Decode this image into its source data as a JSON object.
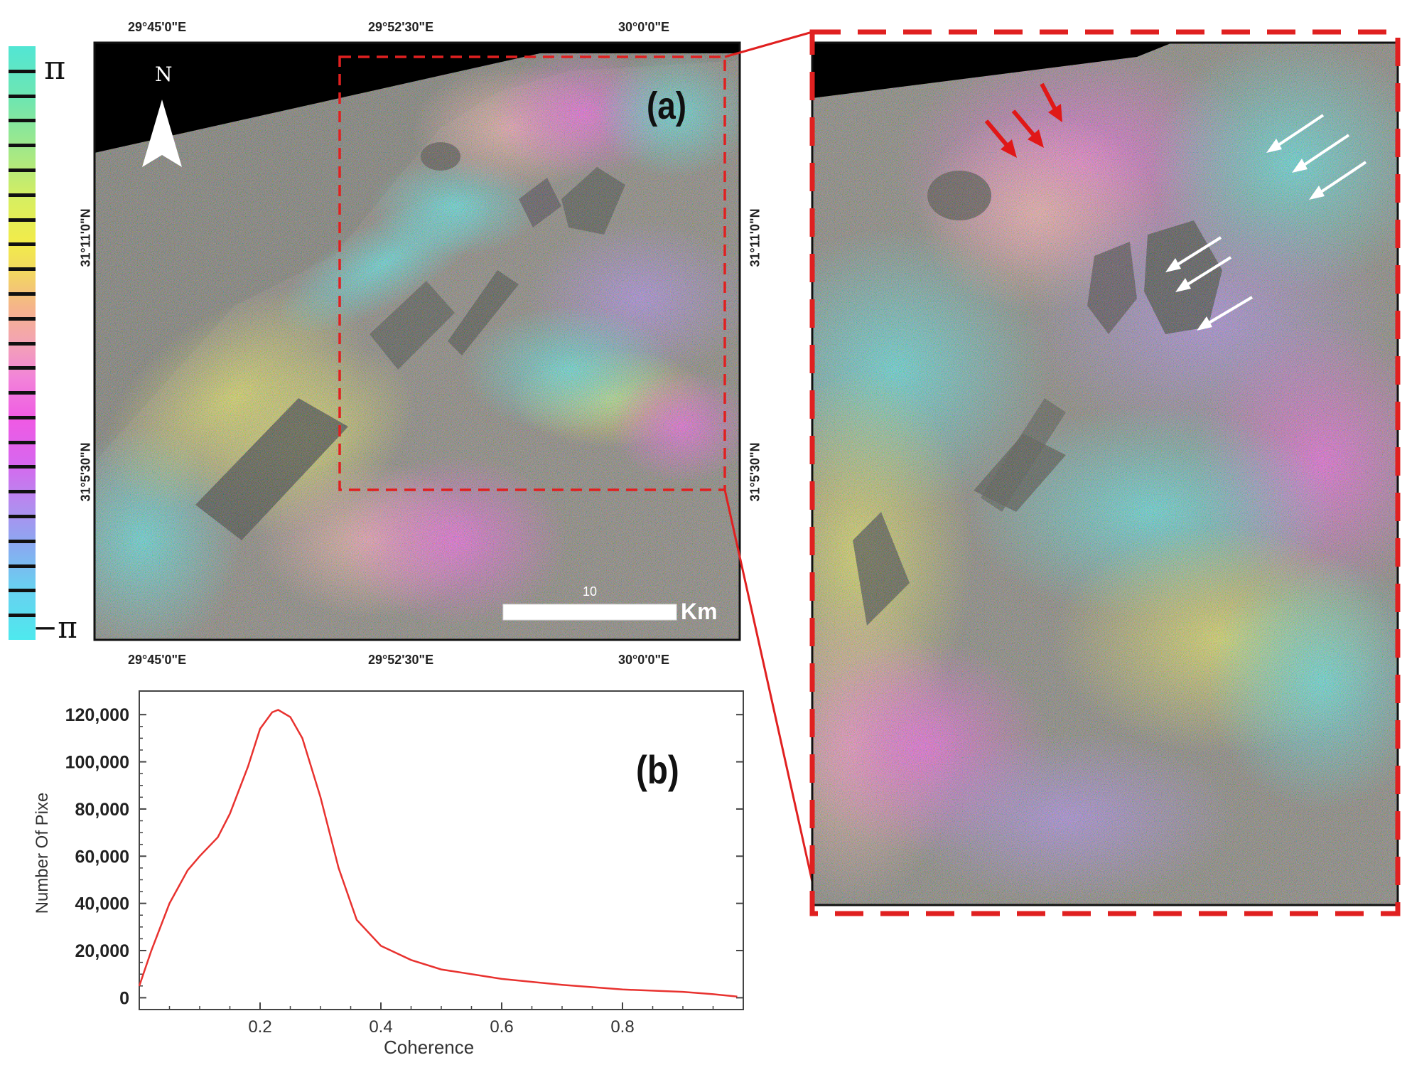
{
  "figure": {
    "colorbar": {
      "top_label": "π",
      "bottom_label": "−π"
    },
    "panel_a": {
      "label": "(a)",
      "north_label": "N",
      "lon_ticks": [
        "29°45'0\"E",
        "29°52'30\"E",
        "30°0'0\"E"
      ],
      "lat_ticks": [
        "31°11'0\"N",
        "31°5'30\"N"
      ],
      "scale_bar": {
        "value": "10",
        "unit": "Km"
      }
    },
    "panel_b": {
      "label": "(b)",
      "xlabel": "Coherence",
      "ylabel": "Number Of Pixe",
      "xtick_labels": [
        "0.2",
        "0.4",
        "0.6",
        "0.8"
      ],
      "ytick_labels": [
        "120,000",
        "100,000",
        "80,000",
        "60,000",
        "40,000",
        "20,000",
        "0"
      ],
      "line_color": "#e8322f"
    },
    "inset": {
      "frame_color": "#e02020",
      "red_arrows": 3,
      "white_arrows": 6
    }
  },
  "chart_data": {
    "type": "line",
    "title": "",
    "xlabel": "Coherence",
    "ylabel": "Number Of Pixe",
    "xlim": [
      0.0,
      1.0
    ],
    "ylim": [
      -5000,
      130000
    ],
    "xticks": [
      0.2,
      0.4,
      0.6,
      0.8
    ],
    "yticks": [
      0,
      20000,
      40000,
      60000,
      80000,
      100000,
      120000
    ],
    "series": [
      {
        "x": [
          0.0,
          0.02,
          0.05,
          0.08,
          0.1,
          0.13,
          0.15,
          0.18,
          0.2,
          0.22,
          0.23,
          0.25,
          0.27,
          0.3,
          0.33,
          0.36,
          0.4,
          0.45,
          0.5,
          0.6,
          0.7,
          0.8,
          0.9,
          0.95,
          0.99
        ],
        "y": [
          5000,
          20000,
          40000,
          54000,
          60000,
          68000,
          78000,
          98000,
          114000,
          121000,
          122000,
          119000,
          110000,
          85000,
          55000,
          33000,
          22000,
          16000,
          12000,
          8000,
          5500,
          3500,
          2500,
          1500,
          500
        ]
      }
    ]
  }
}
